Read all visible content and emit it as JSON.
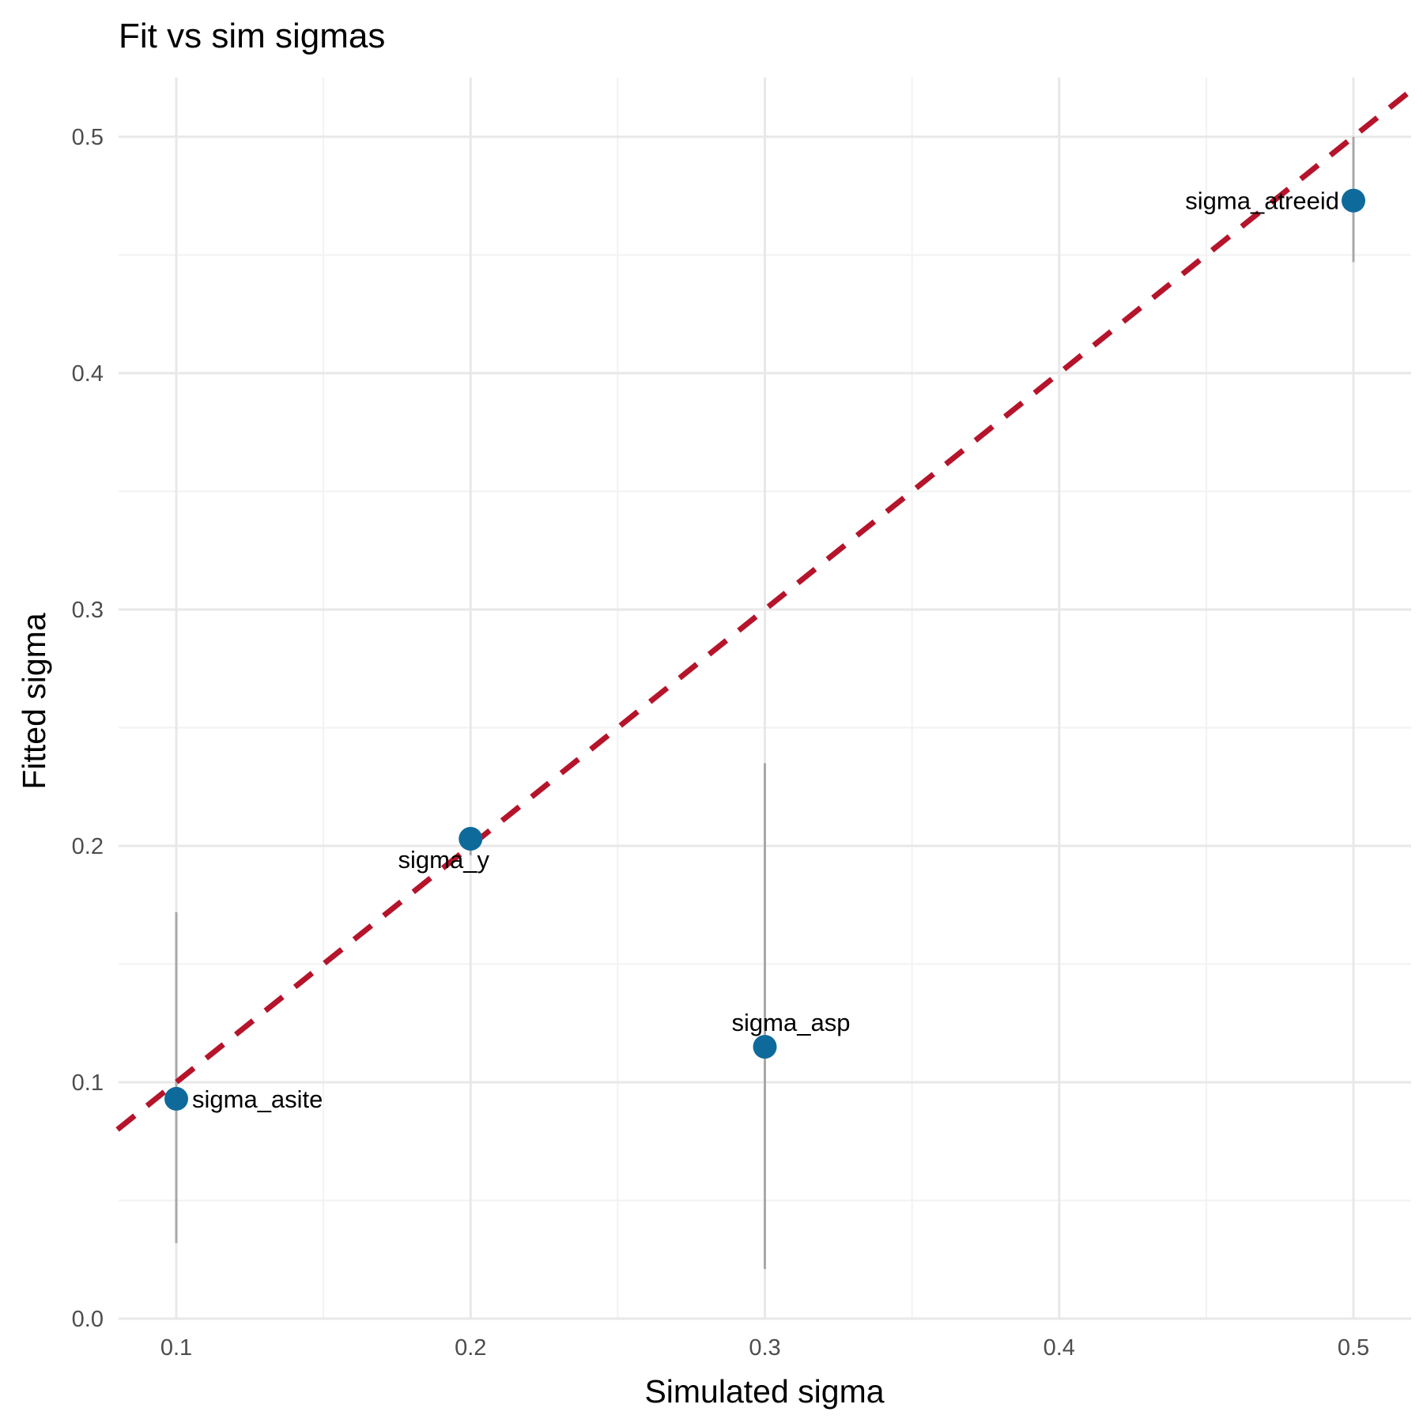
{
  "chart_data": {
    "type": "scatter",
    "title": "Fit vs sim sigmas",
    "xlabel": "Simulated sigma",
    "ylabel": "Fitted sigma",
    "xlim": [
      0.08,
      0.52
    ],
    "ylim": [
      0.0,
      0.525
    ],
    "x_ticks": [
      0.1,
      0.2,
      0.3,
      0.4,
      0.5
    ],
    "y_ticks": [
      0.0,
      0.1,
      0.2,
      0.3,
      0.4,
      0.5
    ],
    "x_tick_labels": [
      "0.1",
      "0.2",
      "0.3",
      "0.4",
      "0.5"
    ],
    "y_tick_labels": [
      "0.0",
      "0.1",
      "0.2",
      "0.3",
      "0.4",
      "0.5"
    ],
    "grid": true,
    "points": [
      {
        "label": "sigma_asite",
        "x": 0.1,
        "y": 0.093,
        "lower": 0.032,
        "upper": 0.172
      },
      {
        "label": "sigma_y",
        "x": 0.2,
        "y": 0.203,
        "lower": 0.196,
        "upper": 0.207
      },
      {
        "label": "sigma_asp",
        "x": 0.3,
        "y": 0.115,
        "lower": 0.021,
        "upper": 0.235
      },
      {
        "label": "sigma_atreeid",
        "x": 0.5,
        "y": 0.473,
        "lower": 0.447,
        "upper": 0.5
      }
    ],
    "reference_line": {
      "slope": 1,
      "intercept": 0,
      "style": "dashed"
    },
    "colors": {
      "point": "#0e6a9a",
      "reference_line": "#b5142b",
      "error_bar": "#a8a8a8",
      "grid_major": "#e8e8e8",
      "grid_minor": "#f2f2f2"
    }
  }
}
